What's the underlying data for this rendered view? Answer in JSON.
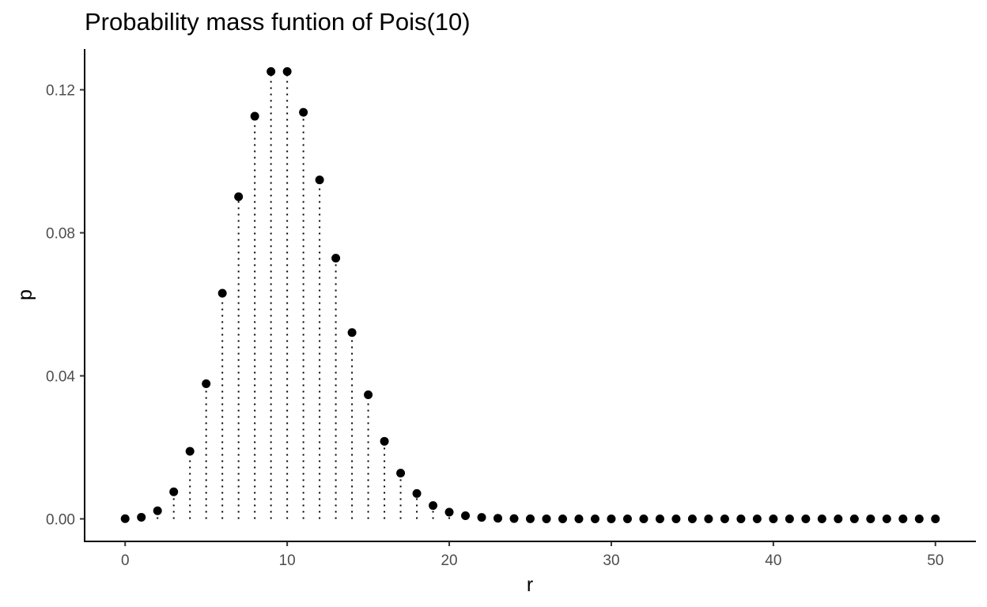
{
  "chart_data": {
    "type": "scatter",
    "style": "lollipop with dotted stems",
    "title": "Probability mass funtion of Pois(10)",
    "xlabel": "r",
    "ylabel": "p",
    "xlim": [
      -2.5,
      52.5
    ],
    "ylim": [
      -0.0063,
      0.1314
    ],
    "x_ticks": [
      0,
      10,
      20,
      30,
      40,
      50
    ],
    "x_tick_labels": [
      "0",
      "10",
      "20",
      "30",
      "40",
      "50"
    ],
    "y_ticks": [
      0,
      0.04,
      0.08,
      0.12
    ],
    "y_tick_labels": [
      "0.00",
      "0.04",
      "0.08",
      "0.12"
    ],
    "grid": false,
    "legend": "none",
    "point_color": "#000000",
    "stem_color": "#000000",
    "x": [
      0,
      1,
      2,
      3,
      4,
      5,
      6,
      7,
      8,
      9,
      10,
      11,
      12,
      13,
      14,
      15,
      16,
      17,
      18,
      19,
      20,
      21,
      22,
      23,
      24,
      25,
      26,
      27,
      28,
      29,
      30,
      31,
      32,
      33,
      34,
      35,
      36,
      37,
      38,
      39,
      40,
      41,
      42,
      43,
      44,
      45,
      46,
      47,
      48,
      49,
      50
    ],
    "values": [
      4.54e-05,
      0.000454,
      0.00227,
      0.00757,
      0.0189,
      0.0378,
      0.0631,
      0.0901,
      0.1126,
      0.1251,
      0.1251,
      0.1137,
      0.0948,
      0.0729,
      0.0521,
      0.0347,
      0.0217,
      0.0128,
      0.00709,
      0.00373,
      0.00187,
      0.000889,
      0.000404,
      0.000176,
      7.32e-05,
      2.93e-05,
      1.13e-05,
      4.2e-06,
      1.5e-06,
      5e-07,
      2e-07,
      1e-07,
      0,
      0,
      0,
      0,
      0,
      0,
      0,
      0,
      0,
      0,
      0,
      0,
      0,
      0,
      0,
      0,
      0,
      0,
      0
    ]
  }
}
